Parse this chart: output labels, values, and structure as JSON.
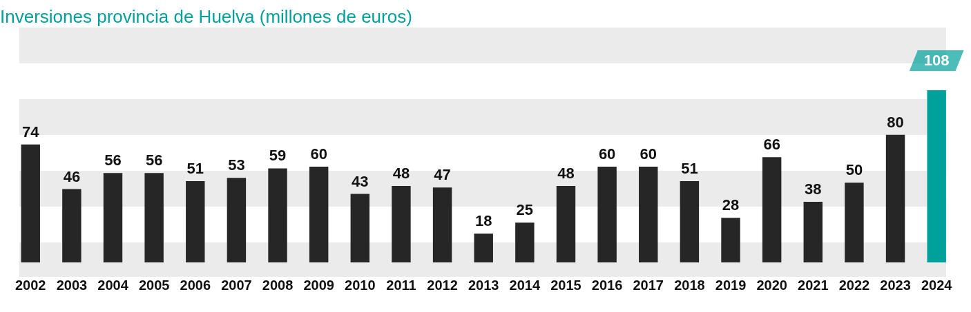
{
  "chart_data": {
    "type": "bar",
    "title": "Inversiones provincia de Huelva (millones de euros)",
    "categories": [
      "2002",
      "2003",
      "2004",
      "2005",
      "2006",
      "2007",
      "2008",
      "2009",
      "2010",
      "2011",
      "2012",
      "2013",
      "2014",
      "2015",
      "2016",
      "2017",
      "2018",
      "2019",
      "2020",
      "2021",
      "2022",
      "2023",
      "2024"
    ],
    "values": [
      74,
      46,
      56,
      56,
      51,
      53,
      59,
      60,
      43,
      48,
      47,
      18,
      25,
      48,
      60,
      60,
      51,
      28,
      66,
      38,
      50,
      80,
      108
    ],
    "colors": [
      "#262626",
      "#262626",
      "#262626",
      "#262626",
      "#262626",
      "#262626",
      "#262626",
      "#262626",
      "#262626",
      "#262626",
      "#262626",
      "#262626",
      "#262626",
      "#262626",
      "#262626",
      "#262626",
      "#262626",
      "#262626",
      "#262626",
      "#262626",
      "#262626",
      "#262626",
      "#00a19a"
    ],
    "data_labels": true,
    "grid": false,
    "legend": false
  }
}
